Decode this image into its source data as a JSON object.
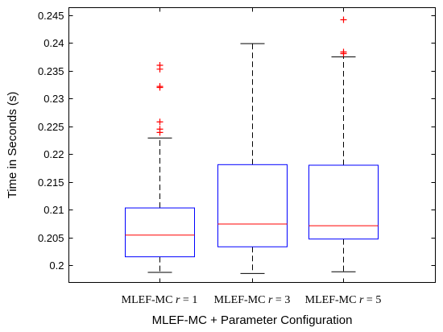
{
  "chart_data": {
    "type": "box",
    "xlabel": "MLEF-MC + Parameter Configuration",
    "ylabel": "Time in Seconds (s)",
    "ylim": [
      0.1975,
      0.2467
    ],
    "yticks": [
      "0.2",
      "0.205",
      "0.21",
      "0.215",
      "0.22",
      "0.225",
      "0.23",
      "0.235",
      "0.24",
      "0.245"
    ],
    "ytick_values": [
      0.2,
      0.205,
      0.21,
      0.215,
      0.22,
      0.225,
      0.23,
      0.235,
      0.24,
      0.245
    ],
    "grid": false,
    "colors": {
      "box": "#0000ff",
      "median": "#ff0000",
      "outlier": "#ff0000",
      "whisker": "#000000"
    },
    "categories": [
      {
        "prefix": "MLEF-MC ",
        "variable": "r",
        "equals": " = 1"
      },
      {
        "prefix": "MLEF-MC ",
        "variable": "r",
        "equals": " = 3"
      },
      {
        "prefix": "MLEF-MC ",
        "variable": "r",
        "equals": " = 5"
      }
    ],
    "boxes": [
      {
        "whisker_low": 0.1987,
        "q1": 0.2015,
        "median": 0.2054,
        "q3": 0.2103,
        "whisker_high": 0.2229,
        "outliers": [
          0.236,
          0.2353,
          0.2322,
          0.232,
          0.2258,
          0.2245,
          0.2239
        ]
      },
      {
        "whisker_low": 0.1985,
        "q1": 0.2033,
        "median": 0.2074,
        "q3": 0.2181,
        "whisker_high": 0.2399,
        "outliers": []
      },
      {
        "whisker_low": 0.1988,
        "q1": 0.2047,
        "median": 0.2071,
        "q3": 0.218,
        "whisker_high": 0.2375,
        "outliers": [
          0.2442,
          0.2384,
          0.2381
        ]
      }
    ]
  }
}
